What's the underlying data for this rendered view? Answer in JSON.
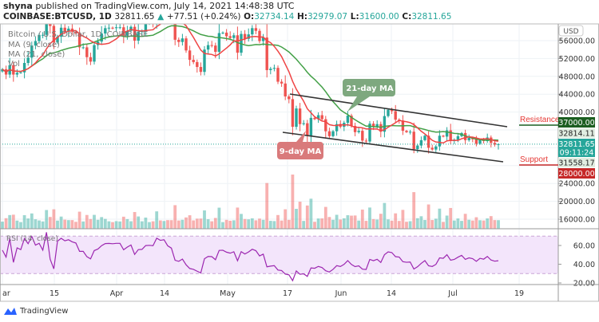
{
  "header": {
    "author": "shyna",
    "published": "published on TradingView.com, July 14, 2021 14:48:38 UTC",
    "symbol": "COINBASE:BTCUSD, 1D",
    "last": "32811.65",
    "change": "+77.51 (+0.24%)",
    "o_label": "O:",
    "o": "32734.14",
    "h_label": "H:",
    "h": "32979.07",
    "l_label": "L:",
    "l": "31600.00",
    "c_label": "C:",
    "c": "32811.65"
  },
  "legend": [
    "Bitcoin / U.S. Dollar, 1D, COINBASE",
    "MA (9, close)",
    "MA (21, close)",
    "Vol"
  ],
  "rsi_label": "RSI (14, close)",
  "annotations": {
    "ma21": "21-day MA",
    "ma9": "9-day MA",
    "resistance": "Resistance",
    "support": "Support"
  },
  "price_axis": {
    "currency": "USD",
    "ticks": [
      "56000.00",
      "52000.00",
      "48000.00",
      "44000.00",
      "40000.00",
      "24000.00",
      "20000.00",
      "16000.00"
    ],
    "labels": {
      "resistance": "37000.00",
      "ma9": "32814.11",
      "last": "32811.65",
      "countdown": "09:11:24",
      "ma21": "31558.17",
      "support": "28000.00"
    }
  },
  "rsi_axis": [
    "60.00",
    "40.00",
    "20.00"
  ],
  "time_axis": [
    "ar",
    "15",
    "Apr",
    "14",
    "May",
    "17",
    "Jun",
    "14",
    "Jul",
    "19"
  ],
  "branding": "TradingView",
  "colors": {
    "up": "#26a69a",
    "down": "#ef5350",
    "ma9": "#ef4444",
    "ma21": "#43a047",
    "rsi": "#9c27b0",
    "resistance": "#1b5e20",
    "support": "#c62828"
  },
  "chart_data": {
    "type": "candlestick",
    "start_date": "2021-03-01",
    "interval": "1D",
    "closes": [
      49600,
      48400,
      50500,
      48400,
      48800,
      48900,
      51000,
      52200,
      54900,
      55900,
      57300,
      57300,
      61200,
      59300,
      55600,
      56900,
      58900,
      58000,
      58700,
      58000,
      57600,
      54500,
      54500,
      52300,
      51300,
      55000,
      55800,
      57600,
      58800,
      58900,
      58800,
      59000,
      59000,
      57100,
      58200,
      59100,
      56000,
      58000,
      58100,
      59800,
      59900,
      59800,
      63500,
      62900,
      63200,
      61500,
      60800,
      56200,
      55700,
      56500,
      53800,
      51700,
      51200,
      50100,
      49000,
      54000,
      55000,
      54900,
      53500,
      57700,
      57800,
      57000,
      56600,
      57200,
      53300,
      57500,
      56400,
      57400,
      58800,
      58200,
      55900,
      56700,
      49400,
      49700,
      49900,
      46800,
      46400,
      43500,
      42900,
      36700,
      40800,
      37300,
      37500,
      34700,
      38700,
      38400,
      39300,
      38400,
      35700,
      34600,
      35700,
      37300,
      36700,
      37600,
      39200,
      36900,
      35500,
      35800,
      33600,
      33400,
      37400,
      36700,
      37300,
      35600,
      39100,
      40500,
      40200,
      38300,
      38100,
      35800,
      35500,
      35600,
      31700,
      32500,
      33700,
      34700,
      32000,
      31600,
      32300,
      34700,
      34500,
      35900,
      33500,
      33800,
      34600,
      35300,
      33700,
      34200,
      33900,
      32900,
      33800,
      33500,
      34300,
      33100,
      32700,
      32811.65
    ],
    "last_candle": {
      "open": 32734.14,
      "high": 32979.07,
      "low": 31600.0,
      "close": 32811.65
    },
    "indicators": [
      "MA 9 close",
      "MA 21 close",
      "Volume",
      "RSI 14 close"
    ],
    "ylim": [
      14000,
      60000
    ],
    "rsi_ylim": [
      15,
      75
    ],
    "rsi_bands": [
      30,
      70
    ],
    "levels": {
      "resistance": 37000,
      "support": 28000
    },
    "channel": {
      "upper": [
        [
          "2021-05-19",
          44500
        ],
        [
          "2021-07-14",
          37200
        ]
      ],
      "lower": [
        [
          "2021-05-17",
          35900
        ],
        [
          "2021-07-14",
          29300
        ]
      ]
    }
  }
}
